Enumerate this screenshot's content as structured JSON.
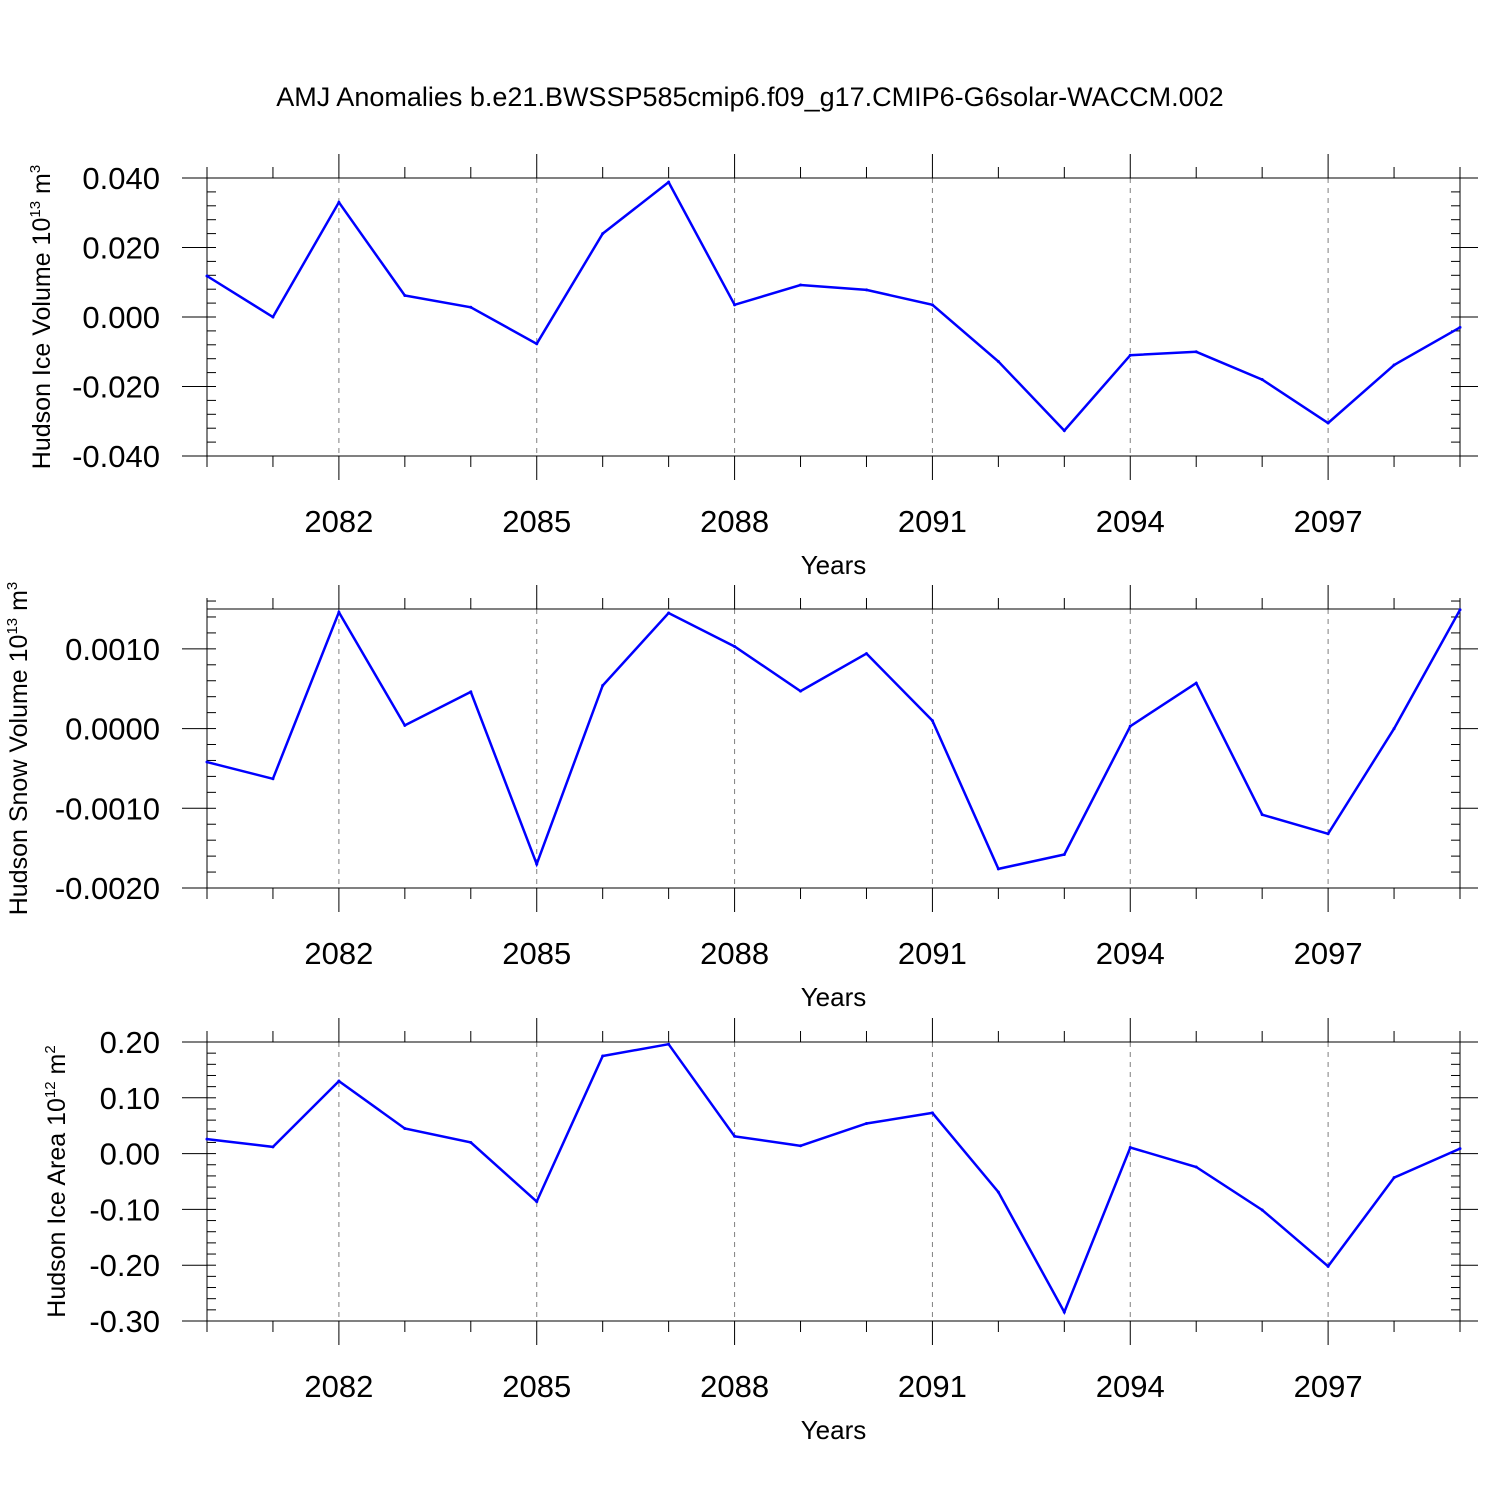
{
  "title": "AMJ Anomalies b.e21.BWSSP585cmip6.f09_g17.CMIP6-G6solar-WACCM.002",
  "colors": {
    "series": "#0000ff",
    "axis": "#000000",
    "grid": "#808080",
    "background": "#ffffff"
  },
  "chart_data": [
    {
      "type": "line",
      "xlabel": "Years",
      "ylabel": "Hudson Ice Volume 10",
      "ylabel_exp": "13",
      "ylabel_unit": "m",
      "ylabel_unit_exp": "3",
      "x": [
        2080,
        2081,
        2082,
        2083,
        2084,
        2085,
        2086,
        2087,
        2088,
        2089,
        2090,
        2091,
        2092,
        2093,
        2094,
        2095,
        2096,
        2097,
        2098,
        2099
      ],
      "values": [
        0.0118,
        0.0,
        0.033,
        0.0062,
        0.0028,
        -0.0077,
        0.024,
        0.0388,
        0.0035,
        0.0092,
        0.0078,
        0.0035,
        -0.0128,
        -0.0327,
        -0.011,
        -0.01,
        -0.018,
        -0.0305,
        -0.0138,
        -0.003
      ],
      "xlim": [
        2080,
        2099
      ],
      "ylim": [
        -0.04,
        0.04
      ],
      "xticks": [
        2082,
        2085,
        2088,
        2091,
        2094,
        2097
      ],
      "xtick_labels": [
        "2082",
        "2085",
        "2088",
        "2091",
        "2094",
        "2097"
      ],
      "yticks": [
        0.04,
        0.02,
        0.0,
        -0.02,
        -0.04
      ],
      "ytick_labels": [
        "0.040",
        "0.020",
        "0.000",
        "-0.020",
        "-0.040"
      ],
      "yminor_step": 0.004,
      "grid": "vertical dashed at major x ticks"
    },
    {
      "type": "line",
      "xlabel": "Years",
      "ylabel": "Hudson Snow Volume 10",
      "ylabel_exp": "13",
      "ylabel_unit": "m",
      "ylabel_unit_exp": "3",
      "x": [
        2080,
        2081,
        2082,
        2083,
        2084,
        2085,
        2086,
        2087,
        2088,
        2089,
        2090,
        2091,
        2092,
        2093,
        2094,
        2095,
        2096,
        2097,
        2098,
        2099
      ],
      "values": [
        -0.00042,
        -0.00063,
        0.00146,
        4e-05,
        0.00046,
        -0.0017,
        0.00054,
        0.00145,
        0.00103,
        0.00047,
        0.00094,
        0.0001,
        -0.00176,
        -0.00158,
        3e-05,
        0.00057,
        -0.00108,
        -0.00132,
        0.0,
        0.00149
      ],
      "xlim": [
        2080,
        2099
      ],
      "ylim": [
        -0.002,
        0.0015
      ],
      "xticks": [
        2082,
        2085,
        2088,
        2091,
        2094,
        2097
      ],
      "xtick_labels": [
        "2082",
        "2085",
        "2088",
        "2091",
        "2094",
        "2097"
      ],
      "yticks": [
        0.001,
        0.0,
        -0.001,
        -0.002
      ],
      "ytick_labels": [
        "0.0010",
        "0.0000",
        "-0.0010",
        "-0.0020"
      ],
      "yminor_step": 0.0002,
      "grid": "vertical dashed at major x ticks"
    },
    {
      "type": "line",
      "xlabel": "Years",
      "ylabel": "Hudson Ice Area 10",
      "ylabel_exp": "12",
      "ylabel_unit": "m",
      "ylabel_unit_exp": "2",
      "x": [
        2080,
        2081,
        2082,
        2083,
        2084,
        2085,
        2086,
        2087,
        2088,
        2089,
        2090,
        2091,
        2092,
        2093,
        2094,
        2095,
        2096,
        2097,
        2098,
        2099
      ],
      "values": [
        0.026,
        0.012,
        0.13,
        0.045,
        0.02,
        -0.086,
        0.175,
        0.196,
        0.031,
        0.014,
        0.054,
        0.073,
        -0.069,
        -0.284,
        0.011,
        -0.024,
        -0.101,
        -0.202,
        -0.043,
        0.009
      ],
      "xlim": [
        2080,
        2099
      ],
      "ylim": [
        -0.3,
        0.2
      ],
      "xticks": [
        2082,
        2085,
        2088,
        2091,
        2094,
        2097
      ],
      "xtick_labels": [
        "2082",
        "2085",
        "2088",
        "2091",
        "2094",
        "2097"
      ],
      "yticks": [
        0.2,
        0.1,
        0.0,
        -0.1,
        -0.2,
        -0.3
      ],
      "ytick_labels": [
        "0.20",
        "0.10",
        "0.00",
        "-0.10",
        "-0.20",
        "-0.30"
      ],
      "yminor_step": 0.02,
      "grid": "vertical dashed at major x ticks"
    }
  ]
}
